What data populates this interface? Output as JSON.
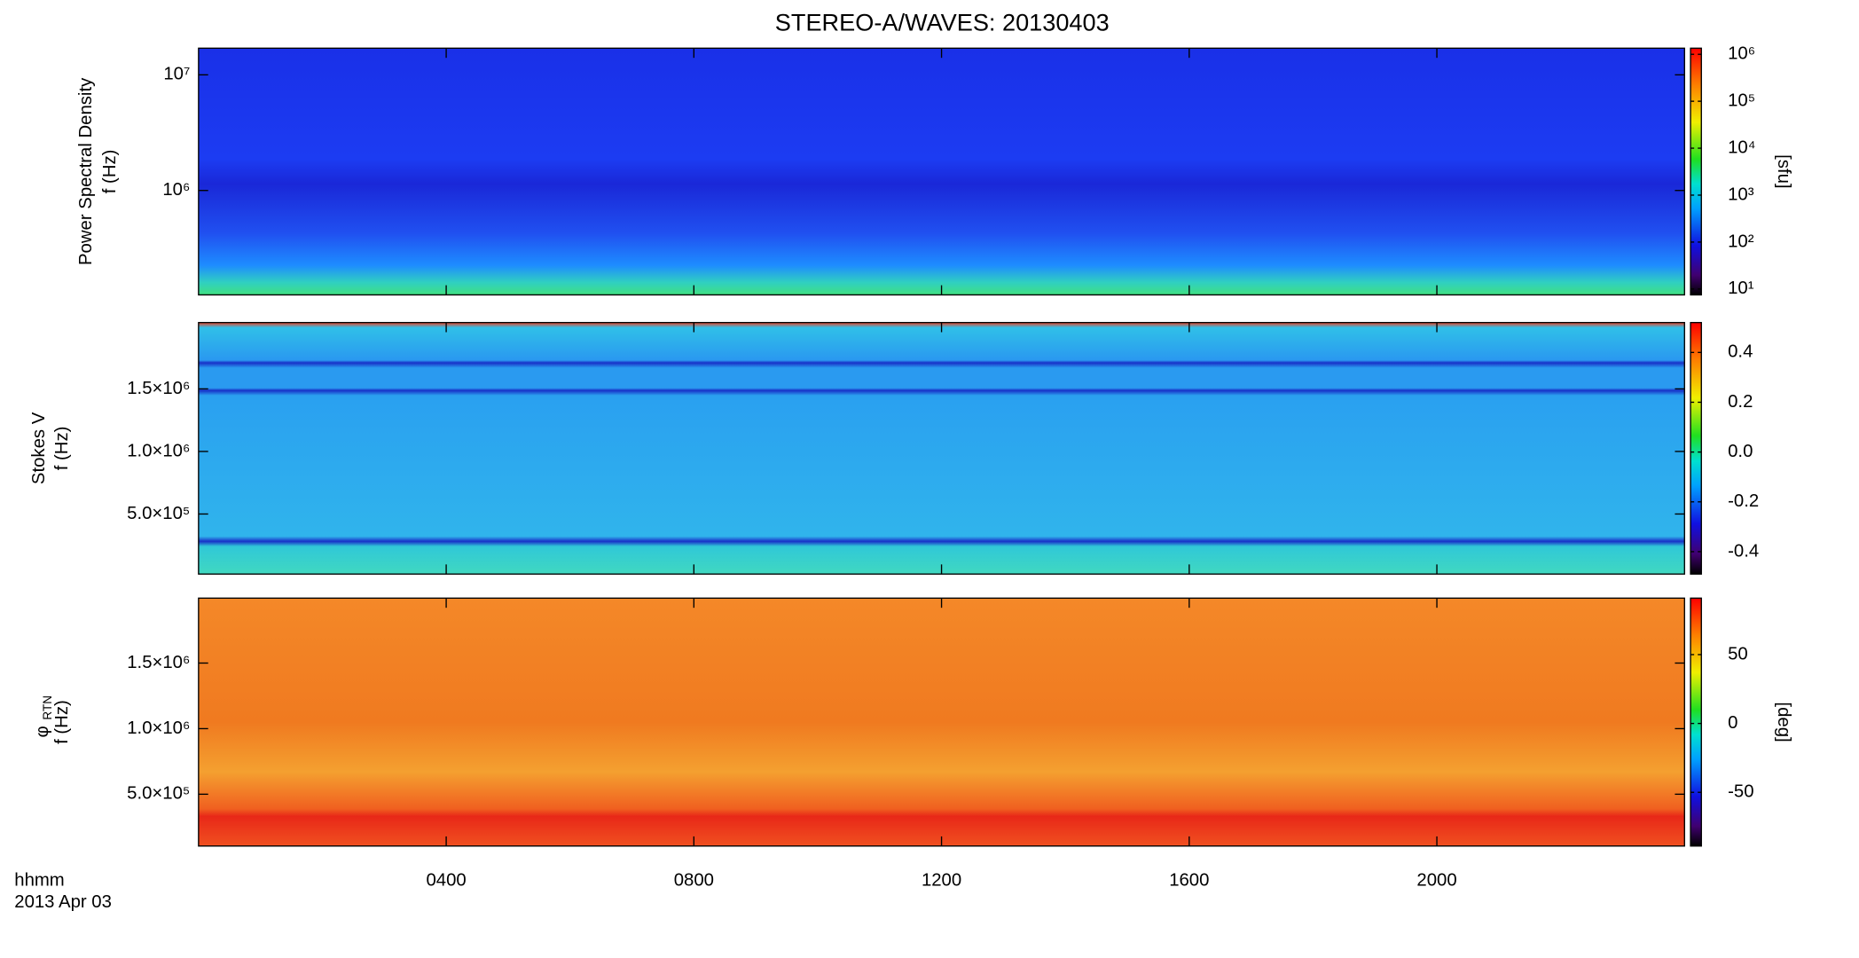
{
  "chart_data": [
    {
      "type": "heatmap",
      "title": "STEREO-A/WAVES: 20130403",
      "ylabel": "Power Spectral Density",
      "ylabel_freq": "f (Hz)",
      "ylog": true,
      "ylim": [
        125000,
        17000000
      ],
      "yticks": [
        {
          "value": 1000000,
          "label": "10⁶"
        },
        {
          "value": 10000000,
          "label": "10⁷"
        }
      ],
      "colorbar": {
        "log": true,
        "lim": [
          7.5,
          1350000
        ],
        "label": "[sfu]",
        "ticks": [
          {
            "value": 10,
            "label": "10¹"
          },
          {
            "value": 100,
            "label": "10²"
          },
          {
            "value": 1000,
            "label": "10³"
          },
          {
            "value": 10000,
            "label": "10⁴"
          },
          {
            "value": 100000,
            "label": "10⁵"
          },
          {
            "value": 1000000,
            "label": "10⁶"
          }
        ]
      }
    },
    {
      "type": "heatmap",
      "ylabel": "Stokes V",
      "ylabel_freq": "f (Hz)",
      "ylog": false,
      "ylim": [
        20000,
        2030000
      ],
      "yticks": [
        {
          "value": 500000,
          "label": "5.0×10⁵"
        },
        {
          "value": 1000000,
          "label": "1.0×10⁶"
        },
        {
          "value": 1500000,
          "label": "1.5×10⁶"
        }
      ],
      "colorbar": {
        "log": false,
        "lim": [
          -0.49,
          0.52
        ],
        "ticks": [
          -0.4,
          -0.2,
          {
            "value": 0,
            "label": "0.0"
          },
          0.2,
          0.4
        ]
      }
    },
    {
      "type": "heatmap",
      "ylabel": "φ",
      "ylabel_sub": "RTN",
      "ylabel_freq": "f (Hz)",
      "ylog": false,
      "ylim": [
        105000,
        1995000
      ],
      "yticks": [
        {
          "value": 500000,
          "label": "5.0×10⁵"
        },
        {
          "value": 1000000,
          "label": "1.0×10⁶"
        },
        {
          "value": 1500000,
          "label": "1.5×10⁶"
        }
      ],
      "colorbar": {
        "log": false,
        "lim": [
          -89,
          91
        ],
        "label": "[deg]",
        "ticks": [
          -50,
          0,
          50
        ]
      },
      "xlabel": "hhmm",
      "date_label": "2013 Apr 03",
      "xlim": [
        0,
        24
      ],
      "xticks": [
        {
          "value": 4,
          "label": "0400"
        },
        {
          "value": 8,
          "label": "0800"
        },
        {
          "value": 12,
          "label": "1200"
        },
        {
          "value": 16,
          "label": "1600"
        },
        {
          "value": 20,
          "label": "2000"
        }
      ]
    }
  ]
}
